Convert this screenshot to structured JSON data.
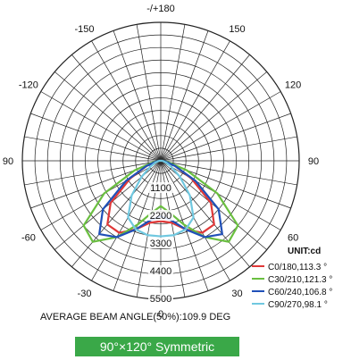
{
  "chart_data": {
    "type": "polar",
    "unit_label": "UNIT:cd",
    "angle_ticks": [
      "-/+180",
      "-150",
      "150",
      "-120",
      "120",
      "90",
      "90",
      "-60",
      "60",
      "-30",
      "30",
      "0"
    ],
    "ring_labels": [
      "1100",
      "2200",
      "3300",
      "4400",
      "5500"
    ],
    "rmax": 5500,
    "caption": "AVERAGE BEAM ANGLE(50%):109.9 DEG",
    "series": [
      {
        "name": "C0/180,113.3 °",
        "color": "#e03838",
        "angles": [
          0,
          10,
          20,
          30,
          40,
          50,
          60,
          70,
          80,
          90
        ],
        "values": [
          2400,
          2500,
          2900,
          3300,
          3300,
          2600,
          1400,
          600,
          200,
          80
        ]
      },
      {
        "name": "C30/210,121.3 °",
        "color": "#6abf40",
        "angles": [
          0,
          10,
          20,
          30,
          40,
          50,
          60,
          70,
          80,
          90
        ],
        "values": [
          1800,
          2100,
          2700,
          3500,
          4200,
          4000,
          2600,
          1100,
          300,
          80
        ]
      },
      {
        "name": "C60/240,106.8 °",
        "color": "#2050b8",
        "angles": [
          0,
          10,
          20,
          30,
          40,
          50,
          60,
          70,
          80,
          90
        ],
        "values": [
          2200,
          2400,
          2900,
          3500,
          3800,
          3000,
          1600,
          600,
          200,
          80
        ]
      },
      {
        "name": "C90/270,98.1 °",
        "color": "#70c8e0",
        "angles": [
          0,
          10,
          20,
          30,
          40,
          50,
          60,
          70,
          80,
          90
        ],
        "values": [
          3000,
          3000,
          2900,
          2600,
          1800,
          1000,
          500,
          250,
          100,
          50
        ]
      }
    ]
  },
  "badge_text": "90°×120° Symmetric"
}
